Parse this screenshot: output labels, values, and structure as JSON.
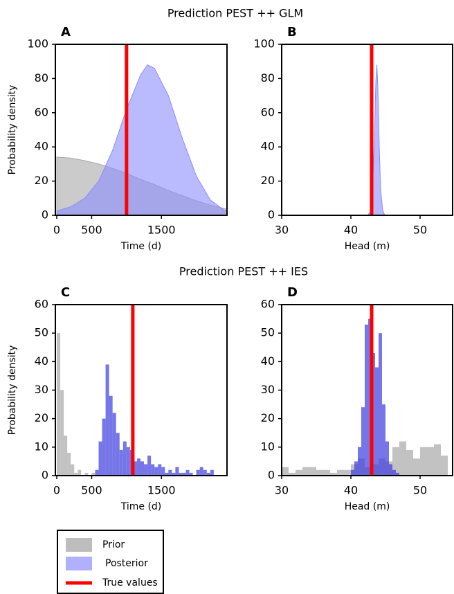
{
  "chart_data": [
    {
      "type": "area",
      "title": "Prediction PEST ++ GLM",
      "label": "A",
      "ylabel": "Probability density",
      "xlabel": "Time (d)",
      "x": [
        0,
        200,
        400,
        600,
        800,
        1000,
        1200,
        1300,
        1400,
        1600,
        1800,
        2000,
        2200,
        2400,
        2440
      ],
      "series": [
        {
          "color": "#a8a8a8",
          "values": [
            34,
            33.5,
            32,
            30,
            27.5,
            24.5,
            21,
            19.5,
            18,
            14.5,
            11.5,
            8.5,
            6,
            4,
            3.5
          ]
        },
        {
          "color": "#8c8cff",
          "values": [
            2.5,
            5,
            10,
            20,
            38,
            62,
            82,
            88,
            86,
            70,
            45,
            23,
            9,
            3,
            2.5
          ]
        }
      ],
      "true_value": 1000,
      "true_color": "#ff0000",
      "xlim": [
        -20,
        2440
      ],
      "ylim": [
        0,
        100
      ],
      "xticks": [
        0,
        500,
        1500
      ],
      "yticks": [
        0,
        20,
        40,
        60,
        80,
        100
      ]
    },
    {
      "type": "area",
      "label": "B",
      "xlabel": "Head (m)",
      "x": [
        42.4,
        42.8,
        43.1,
        43.4,
        43.6,
        43.75,
        43.9,
        44.1,
        44.3,
        44.6,
        44.9
      ],
      "series": [
        {
          "color": "#8c8cff",
          "values": [
            0,
            2,
            12,
            45,
            78,
            88,
            75,
            40,
            15,
            3,
            0
          ]
        }
      ],
      "true_value": 43,
      "true_color": "#ff0000",
      "xlim": [
        30,
        54.7
      ],
      "ylim": [
        0,
        100
      ],
      "xticks": [
        30,
        40,
        50
      ],
      "yticks": [
        0,
        20,
        40,
        60,
        80,
        100
      ]
    },
    {
      "type": "histogram",
      "title": "Prediction PEST ++ IES",
      "label": "C",
      "ylabel": "Probability density",
      "xlabel": "Time (d)",
      "series": [
        {
          "color": "#a8a8a8",
          "bins": [
            0,
            50,
            100,
            150,
            200,
            250,
            300,
            350,
            400,
            450,
            500,
            550,
            600
          ],
          "values": [
            50,
            30,
            14,
            8,
            4,
            1,
            2,
            0,
            1,
            0,
            1,
            0
          ]
        },
        {
          "color": "#3c3ce0",
          "bins": [
            550,
            600,
            650,
            700,
            750,
            800,
            850,
            900,
            950,
            1000,
            1050,
            1100,
            1150,
            1200,
            1250,
            1300,
            1350,
            1400,
            1450,
            1500,
            1550,
            1600,
            1650,
            1700,
            1750,
            1800,
            1850,
            1900,
            1950,
            2000,
            2050,
            2100,
            2150,
            2200,
            2250
          ],
          "values": [
            2,
            12,
            20,
            39,
            28,
            22,
            15,
            9,
            12,
            10,
            9,
            5,
            6,
            5,
            4,
            7,
            4,
            3,
            4,
            3,
            1,
            2,
            1,
            3,
            1,
            1,
            2,
            1,
            0,
            2,
            3,
            2,
            1,
            2
          ]
        }
      ],
      "true_value": 1090,
      "true_color": "#ff0000",
      "xlim": [
        -20,
        2440
      ],
      "ylim": [
        0,
        60
      ],
      "xticks": [
        0,
        500,
        1500
      ],
      "yticks": [
        0,
        10,
        20,
        30,
        40,
        50,
        60
      ]
    },
    {
      "type": "histogram",
      "label": "D",
      "xlabel": "Head (m)",
      "series": [
        {
          "color": "#a8a8a8",
          "bins": [
            30,
            31,
            32,
            33,
            34,
            35,
            36,
            37,
            38,
            39,
            40,
            41,
            42,
            43,
            44,
            45,
            46,
            47,
            48,
            49,
            50,
            51,
            52,
            53,
            54
          ],
          "values": [
            3,
            1,
            2,
            3,
            3,
            2,
            2,
            1,
            2,
            2,
            4,
            6,
            3,
            4,
            6,
            5,
            10,
            12,
            9,
            6,
            10,
            10,
            11,
            7
          ]
        },
        {
          "color": "#3c3ce0",
          "bins": [
            40,
            40.5,
            41,
            41.5,
            42,
            42.5,
            43,
            43.5,
            44,
            44.5,
            45,
            45.5,
            46,
            46.5,
            47
          ],
          "values": [
            2,
            5,
            10,
            24,
            53,
            55,
            43,
            38,
            50,
            25,
            12,
            4,
            2,
            1
          ]
        }
      ],
      "true_value": 43,
      "true_color": "#ff0000",
      "xlim": [
        30,
        54.7
      ],
      "ylim": [
        0,
        60
      ],
      "xticks": [
        30,
        40,
        50
      ],
      "yticks": [
        0,
        10,
        20,
        30,
        40,
        50,
        60
      ]
    }
  ],
  "legend": [
    {
      "label": "Prior",
      "color": "#bdbdbd"
    },
    {
      "label": "Posterior",
      "color": "#b0b0ff"
    },
    {
      "label": "True values",
      "color": "#ff0000"
    }
  ]
}
